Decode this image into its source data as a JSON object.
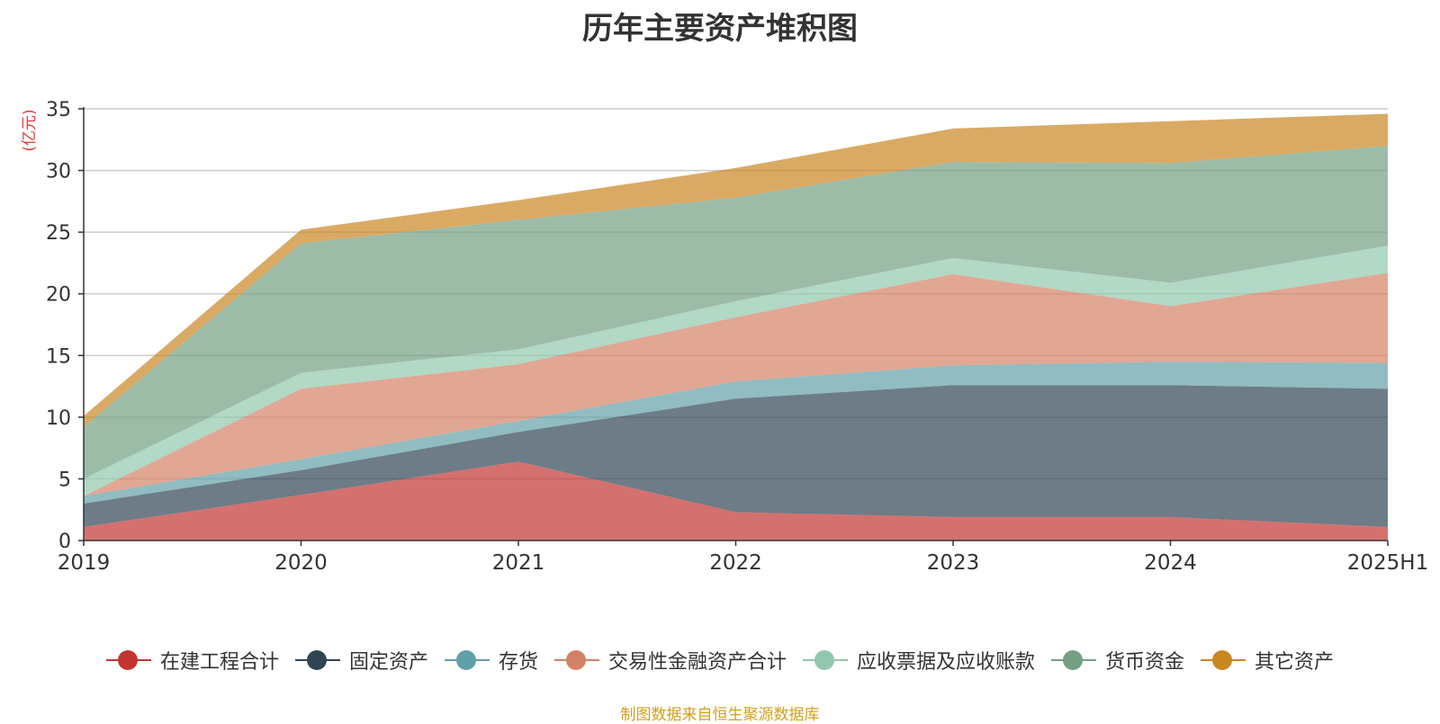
{
  "title": "历年主要资产堆积图",
  "source_note": "制图数据来自恒生聚源数据库",
  "chart_data": {
    "type": "area",
    "stacked": true,
    "title": "历年主要资产堆积图",
    "ylabel": "(亿元)",
    "xlabel": "",
    "categories": [
      "2019",
      "2020",
      "2021",
      "2022",
      "2023",
      "2024",
      "2025H1"
    ],
    "ylim": [
      0,
      35
    ],
    "yticks": [
      0,
      5,
      10,
      15,
      20,
      25,
      30,
      35
    ],
    "grid": true,
    "legend_position": "bottom",
    "series": [
      {
        "name": "在建工程合计",
        "color": "#c23531",
        "values": [
          1.1,
          3.7,
          6.4,
          2.3,
          1.9,
          1.9,
          1.1
        ]
      },
      {
        "name": "固定资产",
        "color": "#2f4554",
        "values": [
          1.9,
          2.0,
          2.4,
          9.2,
          10.7,
          10.7,
          11.2
        ]
      },
      {
        "name": "存货",
        "color": "#61a0a8",
        "values": [
          0.6,
          0.9,
          0.9,
          1.4,
          1.6,
          1.9,
          2.1
        ]
      },
      {
        "name": "交易性金融资产合计",
        "color": "#d48265",
        "values": [
          0.0,
          5.7,
          4.6,
          5.2,
          7.4,
          4.5,
          7.3
        ]
      },
      {
        "name": "应收票据及应收账款",
        "color": "#91c7ae",
        "values": [
          1.4,
          1.3,
          1.2,
          1.3,
          1.3,
          1.9,
          2.2
        ]
      },
      {
        "name": "货币资金",
        "color": "#749f83",
        "values": [
          4.2,
          10.5,
          10.5,
          8.4,
          7.8,
          9.7,
          8.1
        ]
      },
      {
        "name": "其它资产",
        "color": "#ca8622",
        "values": [
          0.9,
          1.1,
          1.6,
          2.4,
          2.7,
          3.4,
          2.6
        ]
      }
    ]
  }
}
